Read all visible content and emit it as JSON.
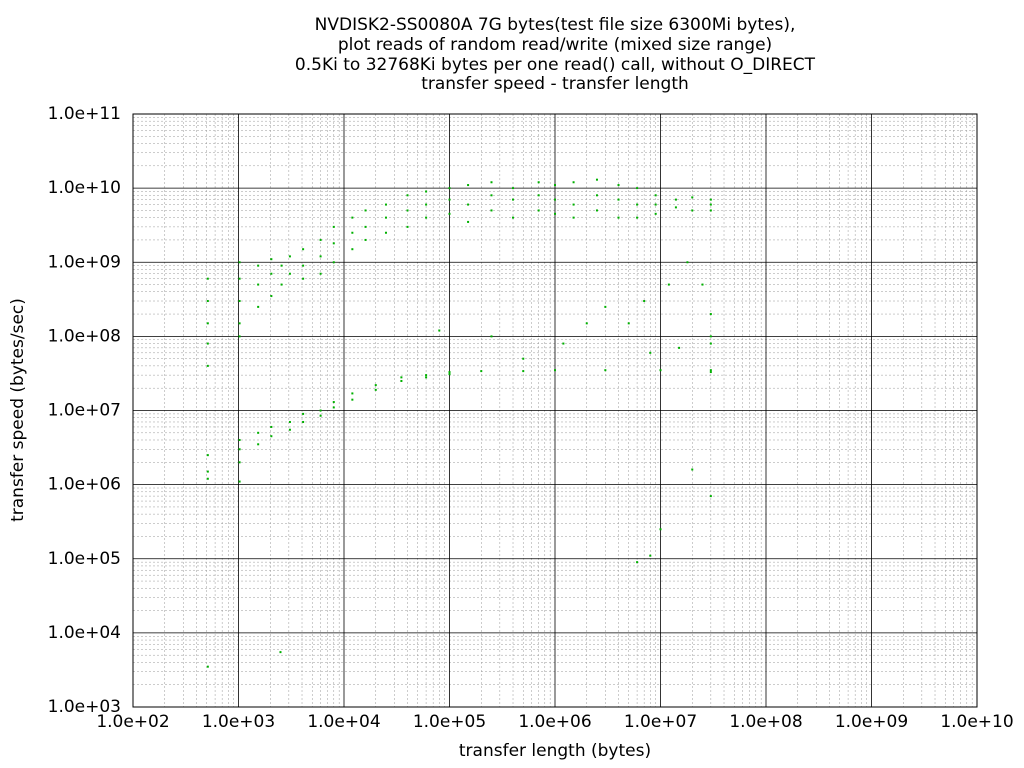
{
  "chart_data": {
    "type": "scatter",
    "title": [
      "NVDISK2-SS0080A 7G bytes(test file size 6300Mi bytes),",
      "plot reads of random read/write (mixed size range)",
      "0.5Ki to 32768Ki bytes per one read() call, without O_DIRECT",
      "transfer speed - transfer length"
    ],
    "x_label": "transfer length (bytes)",
    "y_label": "transfer speed (bytes/sec)",
    "xscale": "log",
    "yscale": "log",
    "grid": true,
    "xlim": [
      100,
      10000000000
    ],
    "ylim": [
      1000,
      100000000000
    ],
    "xticks": [
      {
        "value": 100,
        "label": "1.0e+02"
      },
      {
        "value": 1000,
        "label": "1.0e+03"
      },
      {
        "value": 10000,
        "label": "1.0e+04"
      },
      {
        "value": 100000,
        "label": "1.0e+05"
      },
      {
        "value": 1000000,
        "label": "1.0e+06"
      },
      {
        "value": 10000000,
        "label": "1.0e+07"
      },
      {
        "value": 100000000,
        "label": "1.0e+08"
      },
      {
        "value": 1000000000,
        "label": "1.0e+09"
      },
      {
        "value": 10000000000,
        "label": "1.0e+10"
      }
    ],
    "yticks": [
      {
        "value": 1000,
        "label": "1.0e+03"
      },
      {
        "value": 10000,
        "label": "1.0e+04"
      },
      {
        "value": 100000,
        "label": "1.0e+05"
      },
      {
        "value": 1000000,
        "label": "1.0e+06"
      },
      {
        "value": 10000000,
        "label": "1.0e+07"
      },
      {
        "value": 100000000,
        "label": "1.0e+08"
      },
      {
        "value": 1000000000,
        "label": "1.0e+09"
      },
      {
        "value": 10000000000,
        "label": "1.0e+10"
      },
      {
        "value": 100000000000,
        "label": "1.0e+11"
      }
    ],
    "series": [
      {
        "color": "#00b000",
        "x": [
          512,
          512,
          512,
          512,
          512,
          1024,
          1024,
          1024,
          1024,
          1024,
          1536,
          1536,
          1536,
          2048,
          2048,
          2048,
          2560,
          2560,
          3072,
          3072,
          4096,
          4096,
          4096,
          6000,
          6000,
          6000,
          8000,
          8000,
          8000,
          12000,
          12000,
          12000,
          16000,
          16000,
          16000,
          25000,
          25000,
          25000,
          40000,
          40000,
          40000,
          60000,
          60000,
          60000,
          100000,
          100000,
          100000,
          150000,
          150000,
          150000,
          250000,
          250000,
          250000,
          400000,
          400000,
          400000,
          700000,
          700000,
          700000,
          1000000,
          1000000,
          1000000,
          1500000,
          1500000,
          1500000,
          2500000,
          2500000,
          2500000,
          4000000,
          4000000,
          4000000,
          6000000,
          6000000,
          6000000,
          9000000,
          9000000,
          9000000,
          14000000,
          14000000,
          20000000,
          20000000,
          30000000,
          30000000,
          30000000,
          512,
          512,
          512,
          1024,
          1024,
          1024,
          1024,
          1536,
          1536,
          2048,
          2048,
          3072,
          3072,
          4096,
          4096,
          6000,
          6000,
          8000,
          8000,
          12000,
          12000,
          20000,
          20000,
          35000,
          35000,
          60000,
          60000,
          100000,
          100000,
          200000,
          500000,
          1000000,
          3000000,
          10000000,
          30000000,
          30000000,
          80000,
          250000,
          500000,
          1200000,
          2000000,
          3000000,
          5000000,
          7000000,
          8000000,
          12000000,
          18000000,
          25000000,
          30000000,
          30000000,
          30000000,
          15000000,
          512,
          2500,
          8000000,
          6000000,
          10000000,
          20000000,
          30000000
        ],
        "values": [
          600000000,
          300000000,
          150000000,
          80000000,
          40000000,
          1000000000,
          600000000,
          300000000,
          150000000,
          100000000,
          900000000,
          500000000,
          250000000,
          1100000000,
          700000000,
          350000000,
          900000000,
          500000000,
          1200000000,
          700000000,
          1500000000,
          900000000,
          600000000,
          2000000000,
          1200000000,
          700000000,
          3000000000,
          1800000000,
          1000000000,
          4000000000,
          2500000000,
          1500000000,
          5000000000,
          3000000000,
          2000000000,
          6000000000,
          4000000000,
          2500000000,
          8000000000,
          5000000000,
          3000000000,
          9000000000,
          6000000000,
          4000000000,
          10000000000,
          7000000000,
          4500000000,
          11000000000,
          6000000000,
          3500000000,
          12000000000,
          8000000000,
          5000000000,
          10000000000,
          7000000000,
          4000000000,
          12000000000,
          8000000000,
          5000000000,
          11000000000,
          7000000000,
          4500000000,
          12000000000,
          6000000000,
          4000000000,
          13000000000,
          8000000000,
          5000000000,
          11000000000,
          7000000000,
          4000000000,
          10000000000,
          6000000000,
          4000000000,
          8000000000,
          6000000000,
          4500000000,
          7000000000,
          5500000000,
          7500000000,
          5000000000,
          7000000000,
          6000000000,
          5000000000,
          2500000,
          1500000,
          1200000,
          4000000,
          3000000,
          2000000,
          1100000,
          5000000,
          3500000,
          6000000,
          4500000,
          7000000,
          5500000,
          9000000,
          7000000,
          10000000,
          8500000,
          13000000,
          11000000,
          17000000,
          14000000,
          22000000,
          19000000,
          28000000,
          25000000,
          30000000,
          28000000,
          33000000,
          31000000,
          34000000,
          34000000,
          35000000,
          35000000,
          35000000,
          35000000,
          33000000,
          120000000,
          100000000,
          50000000,
          80000000,
          150000000,
          250000000,
          150000000,
          300000000,
          60000000,
          500000000,
          1000000000,
          500000000,
          200000000,
          80000000,
          100000000,
          70000000,
          3500,
          5500,
          110000,
          90000,
          250000,
          1600000,
          700000
        ]
      }
    ]
  }
}
